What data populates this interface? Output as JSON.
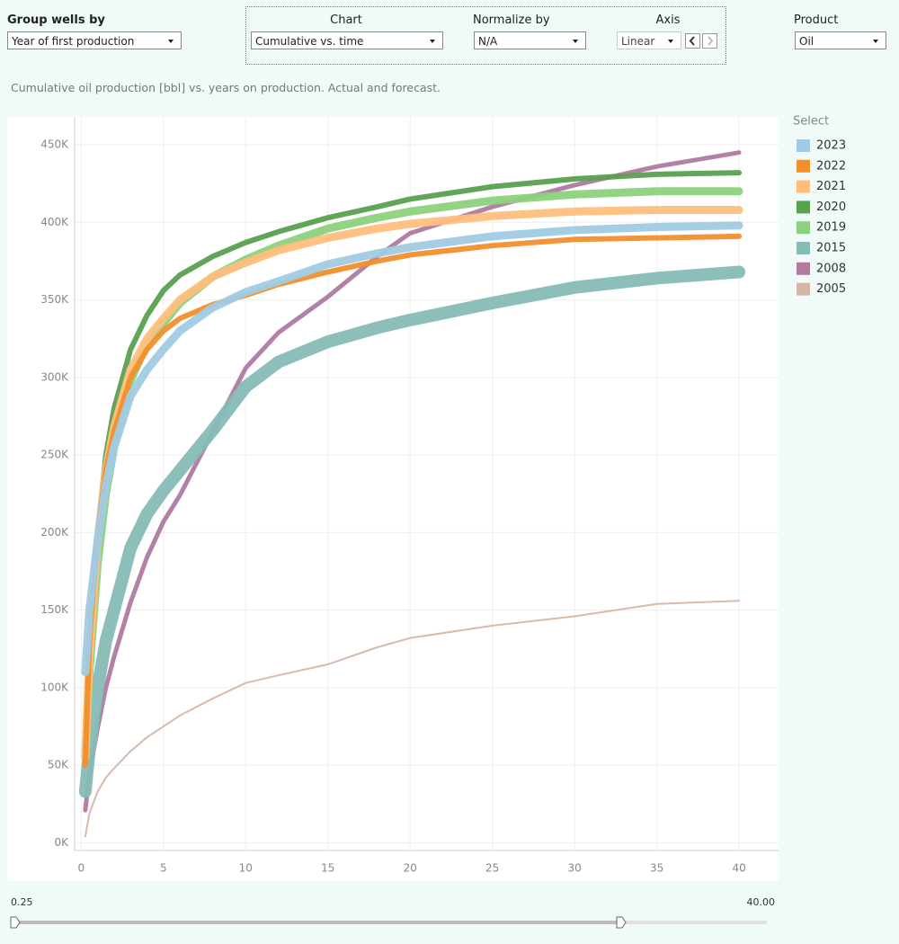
{
  "controls": {
    "group_by": {
      "label": "Group wells by",
      "value": "Year of first production"
    },
    "chart": {
      "label": "Chart",
      "value": "Cumulative vs. time"
    },
    "normalize": {
      "label": "Normalize by",
      "value": "N/A"
    },
    "axis": {
      "label": "Axis",
      "value": "Linear"
    },
    "product": {
      "label": "Product",
      "value": "Oil"
    }
  },
  "chart_data": {
    "type": "line",
    "title": "Cumulative oil production [bbl] vs. years on production. Actual and forecast.",
    "legend_title": "Select",
    "x": [
      0.25,
      0.5,
      1,
      1.5,
      2,
      3,
      4,
      5,
      6,
      8,
      10,
      12,
      15,
      18,
      20,
      25,
      30,
      35,
      40
    ],
    "series": [
      {
        "name": "2023",
        "color": "#a0cbe4",
        "values": [
          110000,
          150000,
          195000,
          230000,
          255000,
          288000,
          305000,
          318000,
          330000,
          345000,
          355000,
          362000,
          373000,
          380000,
          384000,
          391000,
          395000,
          397000,
          398000
        ]
      },
      {
        "name": "2022",
        "color": "#f28e2b",
        "values": [
          50000,
          130000,
          200000,
          240000,
          265000,
          300000,
          318000,
          330000,
          338000,
          347000,
          353000,
          360000,
          368000,
          375000,
          379000,
          385000,
          389000,
          390000,
          391000
        ]
      },
      {
        "name": "2021",
        "color": "#ffbe7d",
        "values": [
          55000,
          120000,
          195000,
          240000,
          268000,
          305000,
          325000,
          338000,
          350000,
          365000,
          374000,
          382000,
          390000,
          396000,
          399000,
          404000,
          407000,
          408000,
          408000
        ]
      },
      {
        "name": "2020",
        "color": "#59a14f",
        "values": [
          60000,
          130000,
          200000,
          250000,
          280000,
          318000,
          340000,
          356000,
          366000,
          378000,
          387000,
          394000,
          403000,
          410000,
          415000,
          423000,
          428000,
          431000,
          432000
        ]
      },
      {
        "name": "2019",
        "color": "#8cd17d",
        "values": [
          55000,
          110000,
          180000,
          225000,
          255000,
          298000,
          322000,
          335000,
          348000,
          365000,
          376000,
          385000,
          396000,
          403000,
          407000,
          414000,
          418000,
          420000,
          420000
        ]
      },
      {
        "name": "2015",
        "color": "#86bcb6",
        "values": [
          33000,
          60000,
          100000,
          130000,
          150000,
          190000,
          212000,
          227000,
          240000,
          266000,
          294000,
          310000,
          323000,
          332000,
          337000,
          348000,
          358000,
          364000,
          368000
        ]
      },
      {
        "name": "2008",
        "color": "#b07aa1",
        "values": [
          21000,
          45000,
          74000,
          100000,
          120000,
          155000,
          184000,
          207000,
          224000,
          265000,
          306000,
          329000,
          352000,
          378000,
          393000,
          410000,
          424000,
          436000,
          445000
        ]
      },
      {
        "name": "2005",
        "color": "#d7b5a6",
        "values": [
          4000,
          19000,
          33000,
          42000,
          48000,
          59000,
          68000,
          75000,
          82000,
          93000,
          103000,
          108000,
          115000,
          126000,
          132000,
          140000,
          146000,
          154000,
          156000
        ]
      }
    ],
    "xlim": [
      -0.4,
      42.4
    ],
    "ylim": [
      -5000,
      468000
    ],
    "xticks": [
      0,
      5,
      10,
      15,
      20,
      25,
      30,
      35,
      40
    ],
    "yticks": [
      {
        "value": 0,
        "label": "0K"
      },
      {
        "value": 50000,
        "label": "50K"
      },
      {
        "value": 100000,
        "label": "100K"
      },
      {
        "value": 150000,
        "label": "150K"
      },
      {
        "value": 200000,
        "label": "200K"
      },
      {
        "value": 250000,
        "label": "250K"
      },
      {
        "value": 300000,
        "label": "300K"
      },
      {
        "value": 350000,
        "label": "350K"
      },
      {
        "value": 400000,
        "label": "400K"
      },
      {
        "value": 450000,
        "label": "450K"
      }
    ],
    "grid": true
  },
  "slider": {
    "min_label": "0.25",
    "max_label": "40.00"
  }
}
